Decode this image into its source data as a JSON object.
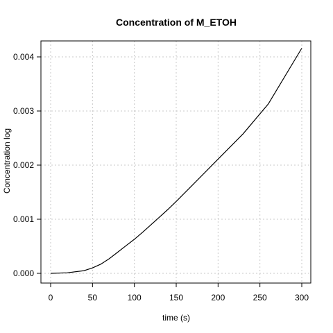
{
  "chart_data": {
    "type": "line",
    "title": "Concentration of M_ETOH",
    "xlabel": "time (s)",
    "ylabel": "Concentration log",
    "xlim": [
      0,
      300
    ],
    "ylim": [
      0,
      0.0042
    ],
    "x_ticks": [
      0,
      50,
      100,
      150,
      200,
      250,
      300
    ],
    "x_tick_labels": [
      "0",
      "50",
      "100",
      "150",
      "200",
      "250",
      "300"
    ],
    "y_ticks": [
      0,
      0.001,
      0.002,
      0.003,
      0.004
    ],
    "y_tick_labels": [
      "0.000",
      "0.001",
      "0.002",
      "0.003",
      "0.004"
    ],
    "grid": true,
    "colors": {
      "line": "#000000",
      "grid": "#c8c8c8"
    },
    "series": [
      {
        "x": [
          0,
          20,
          40,
          50,
          60,
          70,
          80,
          90,
          100,
          110,
          120,
          130,
          140,
          150,
          170,
          200,
          230,
          260,
          300
        ],
        "y": [
          0,
          1e-05,
          5e-05,
          0.0001,
          0.00017,
          0.00027,
          0.00039,
          0.00051,
          0.00063,
          0.00076,
          0.0009,
          0.00104,
          0.00118,
          0.00133,
          0.00164,
          0.00211,
          0.00258,
          0.00313,
          0.00416
        ]
      }
    ]
  }
}
